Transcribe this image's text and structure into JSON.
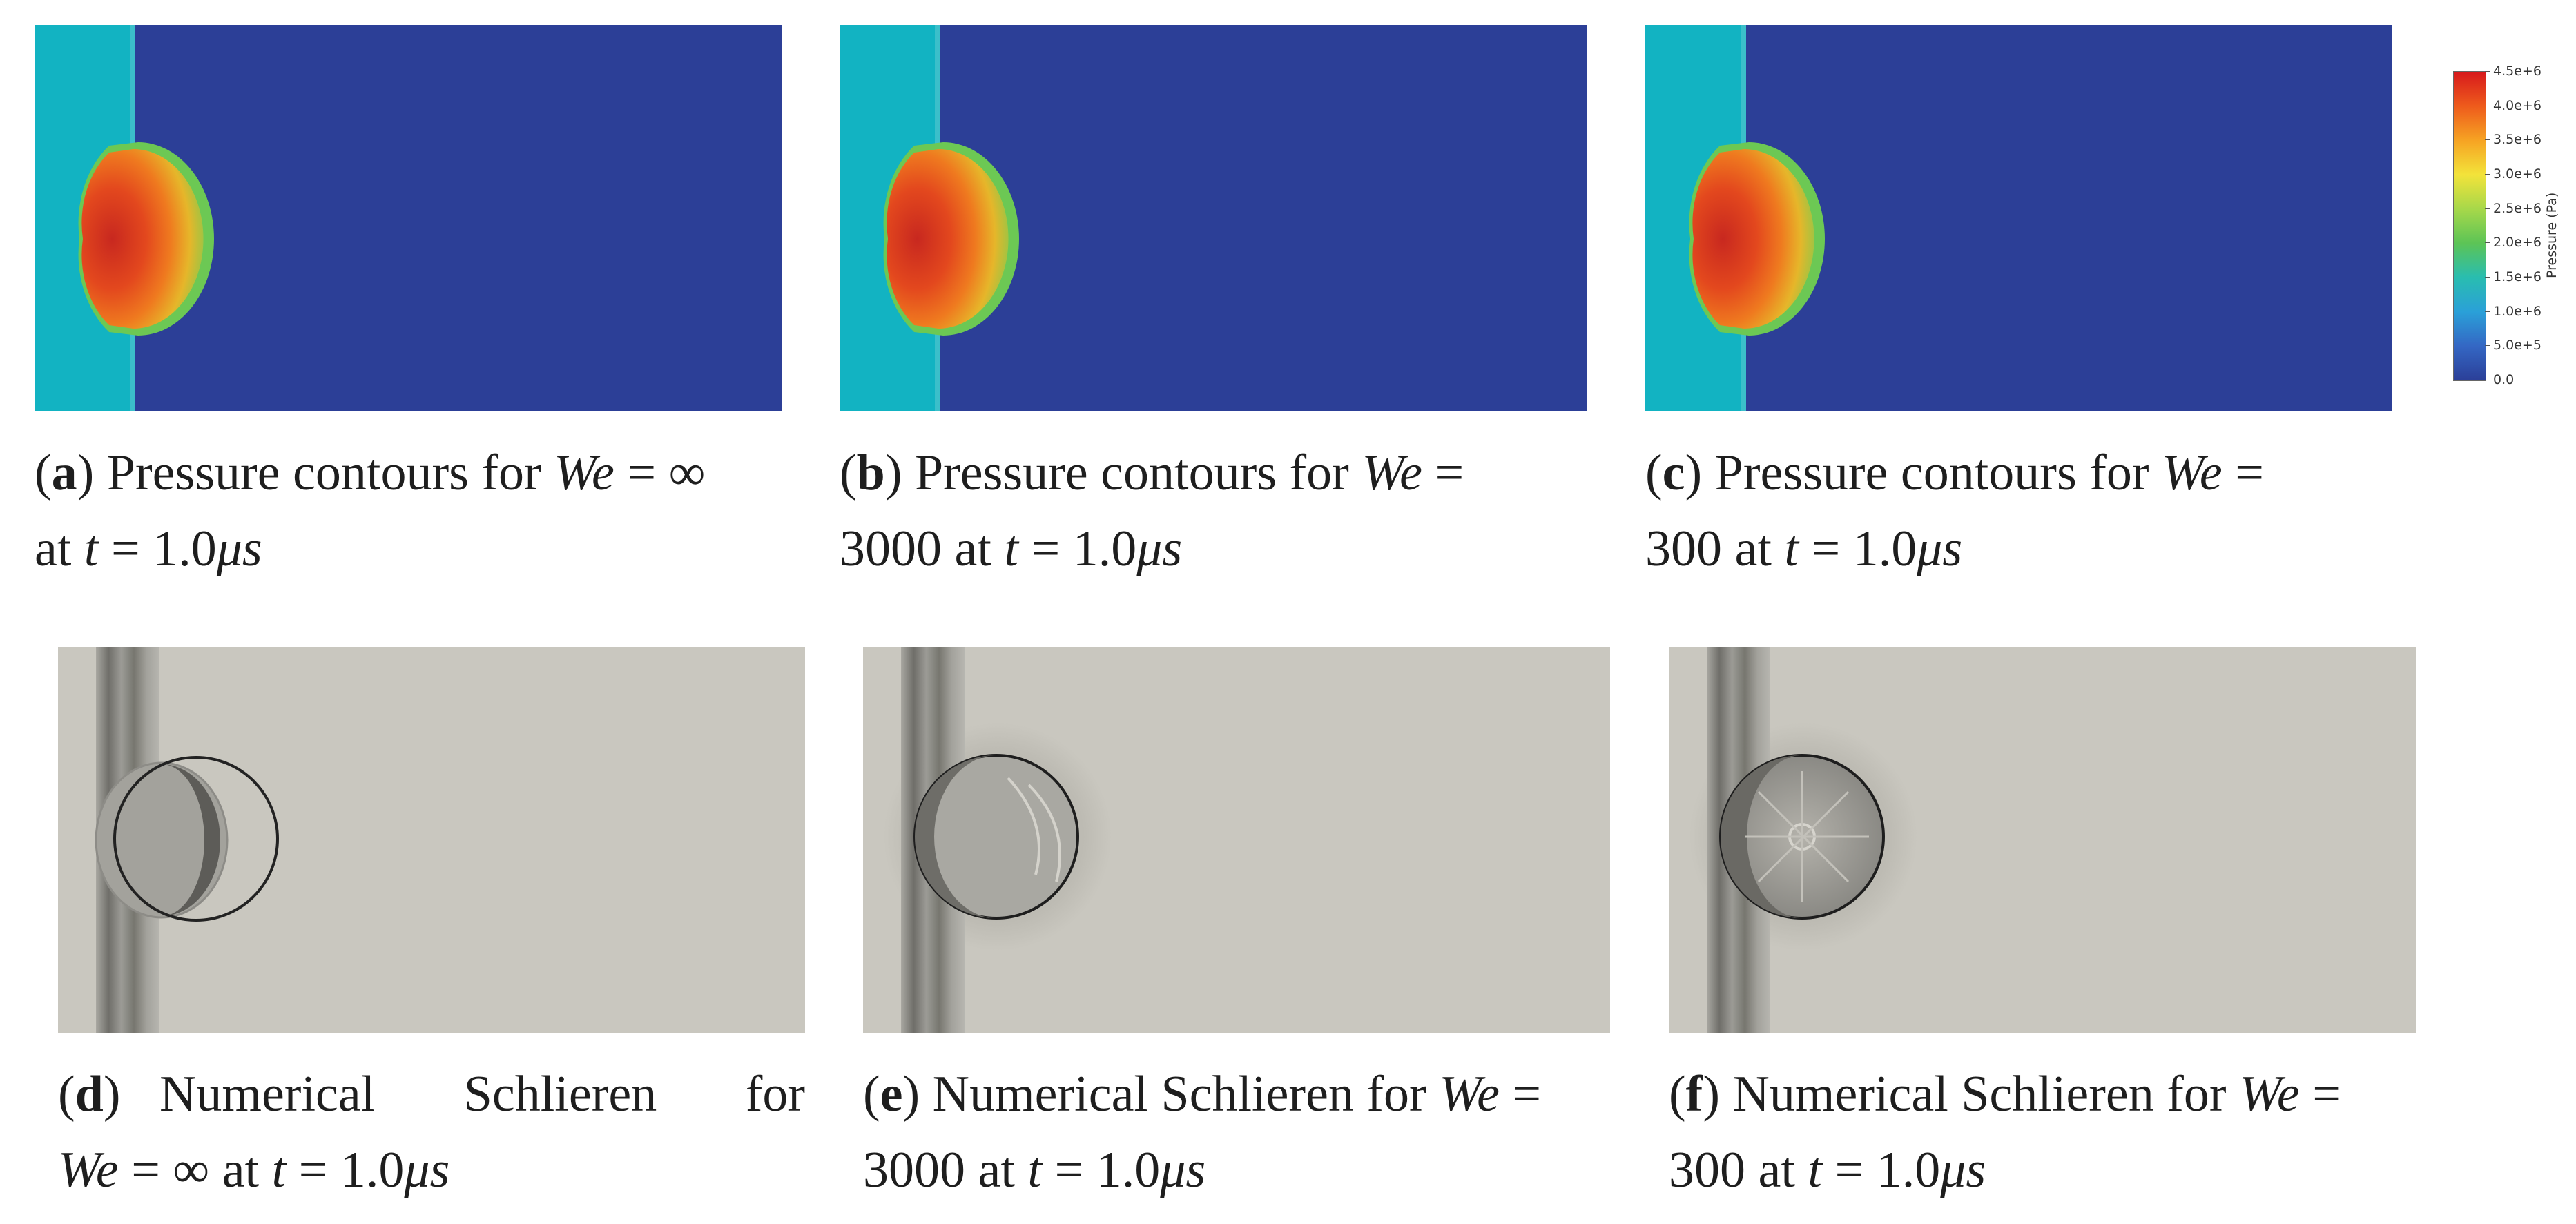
{
  "colorbar": {
    "title": "Pressure (Pa)",
    "ticks": [
      "4.5e+6",
      "4.0e+6",
      "3.5e+6",
      "3.0e+6",
      "2.5e+6",
      "2.0e+6",
      "1.5e+6",
      "1.0e+6",
      "5.0e+5",
      "0.0"
    ],
    "gradient": [
      "#d7191c",
      "#ee5b1c",
      "#f6a323",
      "#f3e33a",
      "#a7d84a",
      "#5cc456",
      "#29bdb0",
      "#2aa0d8",
      "#3467c4",
      "#2b3f98"
    ]
  },
  "colors": {
    "pressure_background": "#2c3f97",
    "pressure_left_band": "#12b3c2",
    "schlieren_background": "#c9c7bf",
    "schlieren_rod": "#8e8d88"
  },
  "captions": {
    "a": {
      "label": "a",
      "text1": "Pressure contours for ",
      "we": "We",
      "eq": " = ∞",
      "line2a": "at ",
      "t": "t",
      "line2b": " = 1.0",
      "mu": "μs"
    },
    "b": {
      "label": "b",
      "text1": "Pressure contours for ",
      "we": "We",
      "eq": " =",
      "line2a": "3000 at ",
      "t": "t",
      "line2b": " = 1.0",
      "mu": "μs"
    },
    "c": {
      "label": "c",
      "text1": "Pressure contours for ",
      "we": "We",
      "eq": " =",
      "line2a": "300 at ",
      "t": "t",
      "line2b": " = 1.0",
      "mu": "μs"
    },
    "d": {
      "label": "d",
      "text1": "Numerical Schlieren for",
      "we": "We",
      "eq": " = ∞ at ",
      "t": "t",
      "line2b": " = 1.0",
      "mu": "μs"
    },
    "e": {
      "label": "e",
      "text1": "Numerical Schlieren for ",
      "we": "We",
      "eq": " =",
      "line2a": "3000 at ",
      "t": "t",
      "line2b": " = 1.0",
      "mu": "μs"
    },
    "f": {
      "label": "f",
      "text1": "Numerical Schlieren for ",
      "we": "We",
      "eq": " =",
      "line2a": "300 at ",
      "t": "t",
      "line2b": " = 1.0",
      "mu": "μs"
    }
  }
}
